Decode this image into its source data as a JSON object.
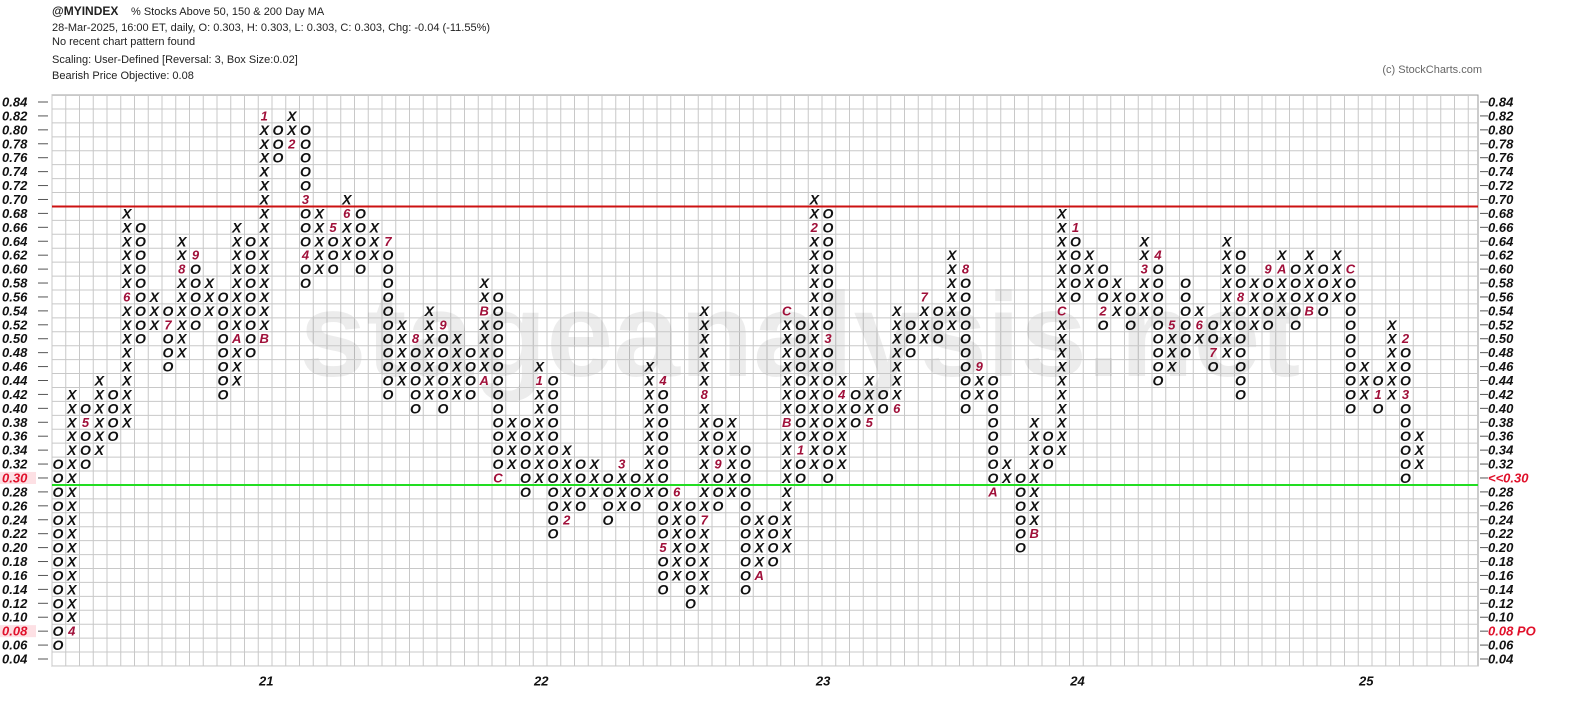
{
  "chart_data": {
    "type": "point_and_figure",
    "symbol": "@MYINDEX",
    "title": "% Stocks Above 50, 150 & 200 Day MA",
    "subtitle": "28-Mar-2025, 16:00 ET, daily, O: 0.303, H: 0.303, L: 0.303, C: 0.303, Chg: -0.04 (-11.55%)",
    "pattern_note": "No recent chart pattern found",
    "scaling": "Scaling: User-Defined [Reversal: 3, Box Size:0.02]",
    "objective": "Bearish Price Objective: 0.08",
    "copyright": "(c) StockCharts.com",
    "watermark": "stageanalysis.net",
    "box_size": 0.02,
    "ylim": [
      0.04,
      0.84
    ],
    "yticks": [
      {
        "value": 0.84,
        "label": "0.84"
      },
      {
        "value": 0.82,
        "label": "0.82"
      },
      {
        "value": 0.8,
        "label": "0.80"
      },
      {
        "value": 0.78,
        "label": "0.78"
      },
      {
        "value": 0.76,
        "label": "0.76"
      },
      {
        "value": 0.74,
        "label": "0.74"
      },
      {
        "value": 0.72,
        "label": "0.72"
      },
      {
        "value": 0.7,
        "label": "0.70"
      },
      {
        "value": 0.68,
        "label": "0.68"
      },
      {
        "value": 0.66,
        "label": "0.66"
      },
      {
        "value": 0.64,
        "label": "0.64"
      },
      {
        "value": 0.62,
        "label": "0.62"
      },
      {
        "value": 0.6,
        "label": "0.60"
      },
      {
        "value": 0.58,
        "label": "0.58"
      },
      {
        "value": 0.56,
        "label": "0.56"
      },
      {
        "value": 0.54,
        "label": "0.54"
      },
      {
        "value": 0.52,
        "label": "0.52"
      },
      {
        "value": 0.5,
        "label": "0.50"
      },
      {
        "value": 0.48,
        "label": "0.48"
      },
      {
        "value": 0.46,
        "label": "0.46"
      },
      {
        "value": 0.44,
        "label": "0.44"
      },
      {
        "value": 0.42,
        "label": "0.42"
      },
      {
        "value": 0.4,
        "label": "0.40"
      },
      {
        "value": 0.38,
        "label": "0.38"
      },
      {
        "value": 0.36,
        "label": "0.36"
      },
      {
        "value": 0.34,
        "label": "0.34"
      },
      {
        "value": 0.32,
        "label": "0.32"
      },
      {
        "value": 0.3,
        "label": "0.30"
      },
      {
        "value": 0.28,
        "label": "0.28"
      },
      {
        "value": 0.26,
        "label": "0.26"
      },
      {
        "value": 0.24,
        "label": "0.24"
      },
      {
        "value": 0.22,
        "label": "0.22"
      },
      {
        "value": 0.2,
        "label": "0.20"
      },
      {
        "value": 0.18,
        "label": "0.18"
      },
      {
        "value": 0.16,
        "label": "0.16"
      },
      {
        "value": 0.14,
        "label": "0.14"
      },
      {
        "value": 0.12,
        "label": "0.12"
      },
      {
        "value": 0.1,
        "label": "0.10"
      },
      {
        "value": 0.08,
        "label": "0.08"
      },
      {
        "value": 0.06,
        "label": "0.06"
      },
      {
        "value": 0.04,
        "label": "0.04"
      }
    ],
    "highlight_ticks": [
      {
        "value": 0.3,
        "label": "0.30",
        "right_label": "<<0.30"
      },
      {
        "value": 0.08,
        "label": "0.08",
        "right_label": "0.08 PO"
      }
    ],
    "highlight_color": "#e0102a",
    "resistance": {
      "value": 0.69,
      "color": "#cc1111"
    },
    "support": {
      "value": 0.29,
      "color": "#22dd22"
    },
    "x_color": "#111111",
    "o_color": "#111111",
    "year_labels": [
      {
        "column": 15,
        "label": "21"
      },
      {
        "column": 35,
        "label": "22"
      },
      {
        "column": 55.5,
        "label": "23"
      },
      {
        "column": 74,
        "label": "24"
      },
      {
        "column": 95,
        "label": "25"
      }
    ],
    "columns": [
      {
        "type": "O",
        "low": 0.06,
        "high": 0.32
      },
      {
        "type": "X",
        "low": 0.08,
        "high": 0.42
      },
      {
        "type": "O",
        "low": 0.32,
        "high": 0.4
      },
      {
        "type": "X",
        "low": 0.34,
        "high": 0.44
      },
      {
        "type": "O",
        "low": 0.36,
        "high": 0.42
      },
      {
        "type": "X",
        "low": 0.38,
        "high": 0.68
      },
      {
        "type": "O",
        "low": 0.5,
        "high": 0.66
      },
      {
        "type": "X",
        "low": 0.52,
        "high": 0.56
      },
      {
        "type": "O",
        "low": 0.46,
        "high": 0.54
      },
      {
        "type": "X",
        "low": 0.48,
        "high": 0.64
      },
      {
        "type": "O",
        "low": 0.52,
        "high": 0.62
      },
      {
        "type": "X",
        "low": 0.54,
        "high": 0.58
      },
      {
        "type": "O",
        "low": 0.42,
        "high": 0.56
      },
      {
        "type": "X",
        "low": 0.44,
        "high": 0.66
      },
      {
        "type": "O",
        "low": 0.48,
        "high": 0.64
      },
      {
        "type": "X",
        "low": 0.5,
        "high": 0.82
      },
      {
        "type": "O",
        "low": 0.76,
        "high": 0.8
      },
      {
        "type": "X",
        "low": 0.78,
        "high": 0.82
      },
      {
        "type": "O",
        "low": 0.58,
        "high": 0.8
      },
      {
        "type": "X",
        "low": 0.6,
        "high": 0.68
      },
      {
        "type": "O",
        "low": 0.6,
        "high": 0.66
      },
      {
        "type": "X",
        "low": 0.62,
        "high": 0.7
      },
      {
        "type": "O",
        "low": 0.6,
        "high": 0.68
      },
      {
        "type": "X",
        "low": 0.62,
        "high": 0.66
      },
      {
        "type": "O",
        "low": 0.42,
        "high": 0.64
      },
      {
        "type": "X",
        "low": 0.44,
        "high": 0.52
      },
      {
        "type": "O",
        "low": 0.4,
        "high": 0.5
      },
      {
        "type": "X",
        "low": 0.42,
        "high": 0.54
      },
      {
        "type": "O",
        "low": 0.4,
        "high": 0.52
      },
      {
        "type": "X",
        "low": 0.42,
        "high": 0.5
      },
      {
        "type": "O",
        "low": 0.42,
        "high": 0.48
      },
      {
        "type": "X",
        "low": 0.44,
        "high": 0.58
      },
      {
        "type": "O",
        "low": 0.3,
        "high": 0.56
      },
      {
        "type": "X",
        "low": 0.32,
        "high": 0.38
      },
      {
        "type": "O",
        "low": 0.28,
        "high": 0.38
      },
      {
        "type": "X",
        "low": 0.3,
        "high": 0.46
      },
      {
        "type": "O",
        "low": 0.22,
        "high": 0.44
      },
      {
        "type": "X",
        "low": 0.24,
        "high": 0.34
      },
      {
        "type": "O",
        "low": 0.26,
        "high": 0.32
      },
      {
        "type": "X",
        "low": 0.28,
        "high": 0.32
      },
      {
        "type": "O",
        "low": 0.24,
        "high": 0.3
      },
      {
        "type": "X",
        "low": 0.26,
        "high": 0.32
      },
      {
        "type": "O",
        "low": 0.26,
        "high": 0.3
      },
      {
        "type": "X",
        "low": 0.28,
        "high": 0.46
      },
      {
        "type": "O",
        "low": 0.14,
        "high": 0.44
      },
      {
        "type": "X",
        "low": 0.16,
        "high": 0.28
      },
      {
        "type": "O",
        "low": 0.12,
        "high": 0.26
      },
      {
        "type": "X",
        "low": 0.14,
        "high": 0.54
      },
      {
        "type": "O",
        "low": 0.26,
        "high": 0.38
      },
      {
        "type": "X",
        "low": 0.28,
        "high": 0.38
      },
      {
        "type": "O",
        "low": 0.14,
        "high": 0.34
      },
      {
        "type": "X",
        "low": 0.16,
        "high": 0.24
      },
      {
        "type": "O",
        "low": 0.18,
        "high": 0.24
      },
      {
        "type": "X",
        "low": 0.2,
        "high": 0.54
      },
      {
        "type": "O",
        "low": 0.3,
        "high": 0.52
      },
      {
        "type": "X",
        "low": 0.32,
        "high": 0.7
      },
      {
        "type": "O",
        "low": 0.3,
        "high": 0.68
      },
      {
        "type": "X",
        "low": 0.32,
        "high": 0.44
      },
      {
        "type": "O",
        "low": 0.38,
        "high": 0.42
      },
      {
        "type": "X",
        "low": 0.38,
        "high": 0.44
      },
      {
        "type": "O",
        "low": 0.4,
        "high": 0.42
      },
      {
        "type": "X",
        "low": 0.4,
        "high": 0.54
      },
      {
        "type": "O",
        "low": 0.48,
        "high": 0.52
      },
      {
        "type": "X",
        "low": 0.5,
        "high": 0.56
      },
      {
        "type": "O",
        "low": 0.5,
        "high": 0.54
      },
      {
        "type": "X",
        "low": 0.52,
        "high": 0.62
      },
      {
        "type": "O",
        "low": 0.4,
        "high": 0.6
      },
      {
        "type": "X",
        "low": 0.42,
        "high": 0.46
      },
      {
        "type": "O",
        "low": 0.28,
        "high": 0.44
      },
      {
        "type": "X",
        "low": 0.3,
        "high": 0.32
      },
      {
        "type": "O",
        "low": 0.2,
        "high": 0.3
      },
      {
        "type": "X",
        "low": 0.22,
        "high": 0.38
      },
      {
        "type": "O",
        "low": 0.32,
        "high": 0.36
      },
      {
        "type": "X",
        "low": 0.34,
        "high": 0.68
      },
      {
        "type": "O",
        "low": 0.56,
        "high": 0.66
      },
      {
        "type": "X",
        "low": 0.58,
        "high": 0.62
      },
      {
        "type": "O",
        "low": 0.52,
        "high": 0.6
      },
      {
        "type": "X",
        "low": 0.54,
        "high": 0.58
      },
      {
        "type": "O",
        "low": 0.52,
        "high": 0.56
      },
      {
        "type": "X",
        "low": 0.54,
        "high": 0.64
      },
      {
        "type": "O",
        "low": 0.44,
        "high": 0.62
      },
      {
        "type": "X",
        "low": 0.46,
        "high": 0.52
      },
      {
        "type": "O",
        "low": 0.48,
        "high": 0.58
      },
      {
        "type": "X",
        "low": 0.5,
        "high": 0.54
      },
      {
        "type": "O",
        "low": 0.46,
        "high": 0.52
      },
      {
        "type": "X",
        "low": 0.48,
        "high": 0.64
      },
      {
        "type": "O",
        "low": 0.42,
        "high": 0.62
      },
      {
        "type": "X",
        "low": 0.52,
        "high": 0.58
      },
      {
        "type": "O",
        "low": 0.52,
        "high": 0.6
      },
      {
        "type": "X",
        "low": 0.54,
        "high": 0.62
      },
      {
        "type": "O",
        "low": 0.52,
        "high": 0.6
      },
      {
        "type": "X",
        "low": 0.54,
        "high": 0.62
      },
      {
        "type": "O",
        "low": 0.54,
        "high": 0.6
      },
      {
        "type": "X",
        "low": 0.56,
        "high": 0.62
      },
      {
        "type": "O",
        "low": 0.4,
        "high": 0.6
      },
      {
        "type": "X",
        "low": 0.42,
        "high": 0.46
      },
      {
        "type": "O",
        "low": 0.4,
        "high": 0.44
      },
      {
        "type": "X",
        "low": 0.42,
        "high": 0.52
      },
      {
        "type": "O",
        "low": 0.3,
        "high": 0.5
      },
      {
        "type": "X",
        "low": 0.32,
        "high": 0.36
      }
    ],
    "markers": [
      {
        "column": 1,
        "value": 0.08,
        "label": "4"
      },
      {
        "column": 2,
        "value": 0.38,
        "label": "5"
      },
      {
        "column": 5,
        "value": 0.56,
        "label": "6"
      },
      {
        "column": 8,
        "value": 0.52,
        "label": "7"
      },
      {
        "column": 9,
        "value": 0.6,
        "label": "8"
      },
      {
        "column": 10,
        "value": 0.62,
        "label": "9"
      },
      {
        "column": 13,
        "value": 0.5,
        "label": "A"
      },
      {
        "column": 15,
        "value": 0.5,
        "label": "B"
      },
      {
        "column": 15,
        "value": 0.82,
        "label": "1"
      },
      {
        "column": 17,
        "value": 0.78,
        "label": "2"
      },
      {
        "column": 18,
        "value": 0.7,
        "label": "3"
      },
      {
        "column": 18,
        "value": 0.62,
        "label": "4"
      },
      {
        "column": 20,
        "value": 0.66,
        "label": "5"
      },
      {
        "column": 21,
        "value": 0.68,
        "label": "6"
      },
      {
        "column": 24,
        "value": 0.64,
        "label": "7"
      },
      {
        "column": 26,
        "value": 0.5,
        "label": "8"
      },
      {
        "column": 28,
        "value": 0.52,
        "label": "9"
      },
      {
        "column": 31,
        "value": 0.44,
        "label": "A"
      },
      {
        "column": 31,
        "value": 0.54,
        "label": "B"
      },
      {
        "column": 32,
        "value": 0.3,
        "label": "C"
      },
      {
        "column": 35,
        "value": 0.44,
        "label": "1"
      },
      {
        "column": 37,
        "value": 0.24,
        "label": "2"
      },
      {
        "column": 41,
        "value": 0.32,
        "label": "3"
      },
      {
        "column": 44,
        "value": 0.44,
        "label": "4"
      },
      {
        "column": 44,
        "value": 0.2,
        "label": "5"
      },
      {
        "column": 45,
        "value": 0.28,
        "label": "6"
      },
      {
        "column": 47,
        "value": 0.24,
        "label": "7"
      },
      {
        "column": 47,
        "value": 0.42,
        "label": "8"
      },
      {
        "column": 48,
        "value": 0.32,
        "label": "9"
      },
      {
        "column": 51,
        "value": 0.16,
        "label": "A"
      },
      {
        "column": 53,
        "value": 0.38,
        "label": "B"
      },
      {
        "column": 53,
        "value": 0.54,
        "label": "C"
      },
      {
        "column": 54,
        "value": 0.34,
        "label": "1"
      },
      {
        "column": 55,
        "value": 0.66,
        "label": "2"
      },
      {
        "column": 56,
        "value": 0.5,
        "label": "3"
      },
      {
        "column": 57,
        "value": 0.42,
        "label": "4"
      },
      {
        "column": 59,
        "value": 0.38,
        "label": "5"
      },
      {
        "column": 61,
        "value": 0.4,
        "label": "6"
      },
      {
        "column": 63,
        "value": 0.56,
        "label": "7"
      },
      {
        "column": 66,
        "value": 0.6,
        "label": "8"
      },
      {
        "column": 67,
        "value": 0.46,
        "label": "9"
      },
      {
        "column": 68,
        "value": 0.28,
        "label": "A"
      },
      {
        "column": 71,
        "value": 0.22,
        "label": "B"
      },
      {
        "column": 73,
        "value": 0.54,
        "label": "C"
      },
      {
        "column": 74,
        "value": 0.66,
        "label": "1"
      },
      {
        "column": 76,
        "value": 0.54,
        "label": "2"
      },
      {
        "column": 79,
        "value": 0.6,
        "label": "3"
      },
      {
        "column": 80,
        "value": 0.62,
        "label": "4"
      },
      {
        "column": 81,
        "value": 0.52,
        "label": "5"
      },
      {
        "column": 83,
        "value": 0.52,
        "label": "6"
      },
      {
        "column": 84,
        "value": 0.48,
        "label": "7"
      },
      {
        "column": 86,
        "value": 0.56,
        "label": "8"
      },
      {
        "column": 88,
        "value": 0.6,
        "label": "9"
      },
      {
        "column": 89,
        "value": 0.6,
        "label": "A"
      },
      {
        "column": 91,
        "value": 0.54,
        "label": "B"
      },
      {
        "column": 94,
        "value": 0.6,
        "label": "C"
      },
      {
        "column": 96,
        "value": 0.42,
        "label": "1"
      },
      {
        "column": 98,
        "value": 0.5,
        "label": "2"
      },
      {
        "column": 98,
        "value": 0.42,
        "label": "3"
      }
    ]
  }
}
